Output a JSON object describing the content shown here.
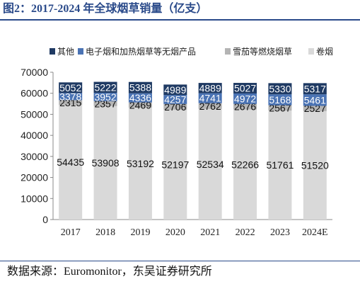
{
  "header": {
    "title": "图2：2017-2024 年全球烟草销量（亿支）"
  },
  "footer": {
    "source": "数据来源：Euromonitor，东吴证券研究所"
  },
  "colors": {
    "other": "#1f3a63",
    "ecig": "#4a73b4",
    "cigar": "#b4b4b4",
    "cigarette": "#d9d9d9",
    "axis_text": "#222222",
    "grid_axis": "#888888"
  },
  "chart_data": {
    "type": "bar",
    "stacked": true,
    "categories": [
      "2017",
      "2018",
      "2019",
      "2020",
      "2021",
      "2022",
      "2023",
      "2024E"
    ],
    "series": [
      {
        "name": "卷烟",
        "values": [
          54435,
          53908,
          53192,
          52197,
          52534,
          52266,
          51761,
          51520
        ],
        "color": "#d9d9d9",
        "label_color": "#111111"
      },
      {
        "name": "雪茄等燃烧烟草",
        "values": [
          2315,
          2357,
          2469,
          2706,
          2762,
          2676,
          2567,
          2527
        ],
        "color": "#b4b4b4",
        "label_color": "#111111"
      },
      {
        "name": "电子烟和加热烟草等无烟产品",
        "values": [
          3378,
          3952,
          4336,
          4257,
          4741,
          4972,
          5168,
          5461
        ],
        "color": "#4a73b4",
        "label_color": "#ffffff"
      },
      {
        "name": "其他",
        "values": [
          5052,
          5222,
          5388,
          4989,
          4889,
          5027,
          5330,
          5317
        ],
        "color": "#1f3a63",
        "label_color": "#ffffff"
      }
    ],
    "legend_order": [
      "其他",
      "电子烟和加热烟草等无烟产品",
      "雪茄等燃烧烟草",
      "卷烟"
    ],
    "ylim": [
      0,
      70000
    ],
    "yticks": [
      "0",
      "10000",
      "20000",
      "30000",
      "40000",
      "50000",
      "60000",
      "70000"
    ],
    "legend": "top",
    "grid": false
  }
}
